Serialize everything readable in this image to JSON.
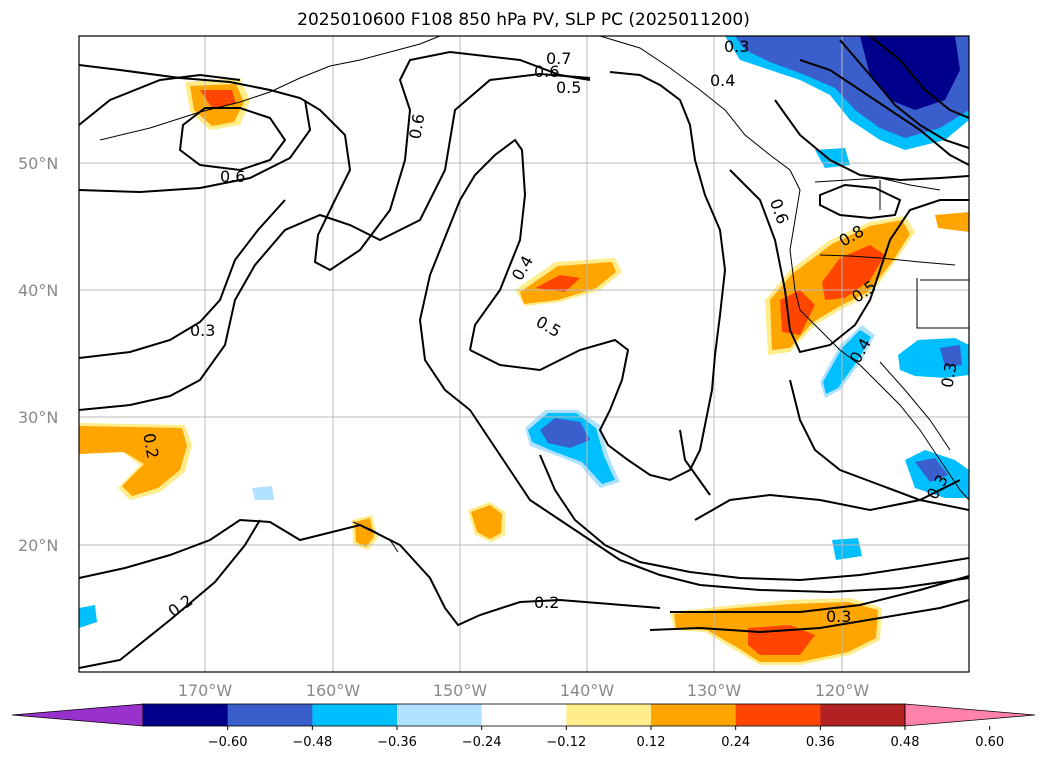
{
  "title": "2025010600 F108 850 hPa PV, SLP PC (2025011200)",
  "lat_labels": [
    "50°N",
    "40°N",
    "30°N",
    "20°N"
  ],
  "lon_labels": [
    "170°W",
    "160°W",
    "150°W",
    "140°W",
    "130°W",
    "120°W"
  ],
  "colorbar": {
    "ticks": [
      "−0.60",
      "−0.48",
      "−0.36",
      "−0.24",
      "−0.12",
      "0.12",
      "0.24",
      "0.36",
      "0.48",
      "0.60"
    ],
    "colors": [
      "#9932cc",
      "#00008b",
      "#3a5fcd",
      "#00bfff",
      "#b0e2ff",
      "#ffffff",
      "#ffec8b",
      "#ffa500",
      "#ff4500",
      "#b22222",
      "#ff82ab"
    ]
  },
  "contour_labels": [
    "0.7",
    "0.6",
    "0.5",
    "0.6",
    "0.6",
    "0.3",
    "0.4",
    "0.5",
    "0.4",
    "0.2",
    "0.2",
    "0.2",
    "0.3",
    "0.6",
    "0.8",
    "0.5",
    "0.4",
    "0.3",
    "0.3",
    "0.3"
  ]
}
